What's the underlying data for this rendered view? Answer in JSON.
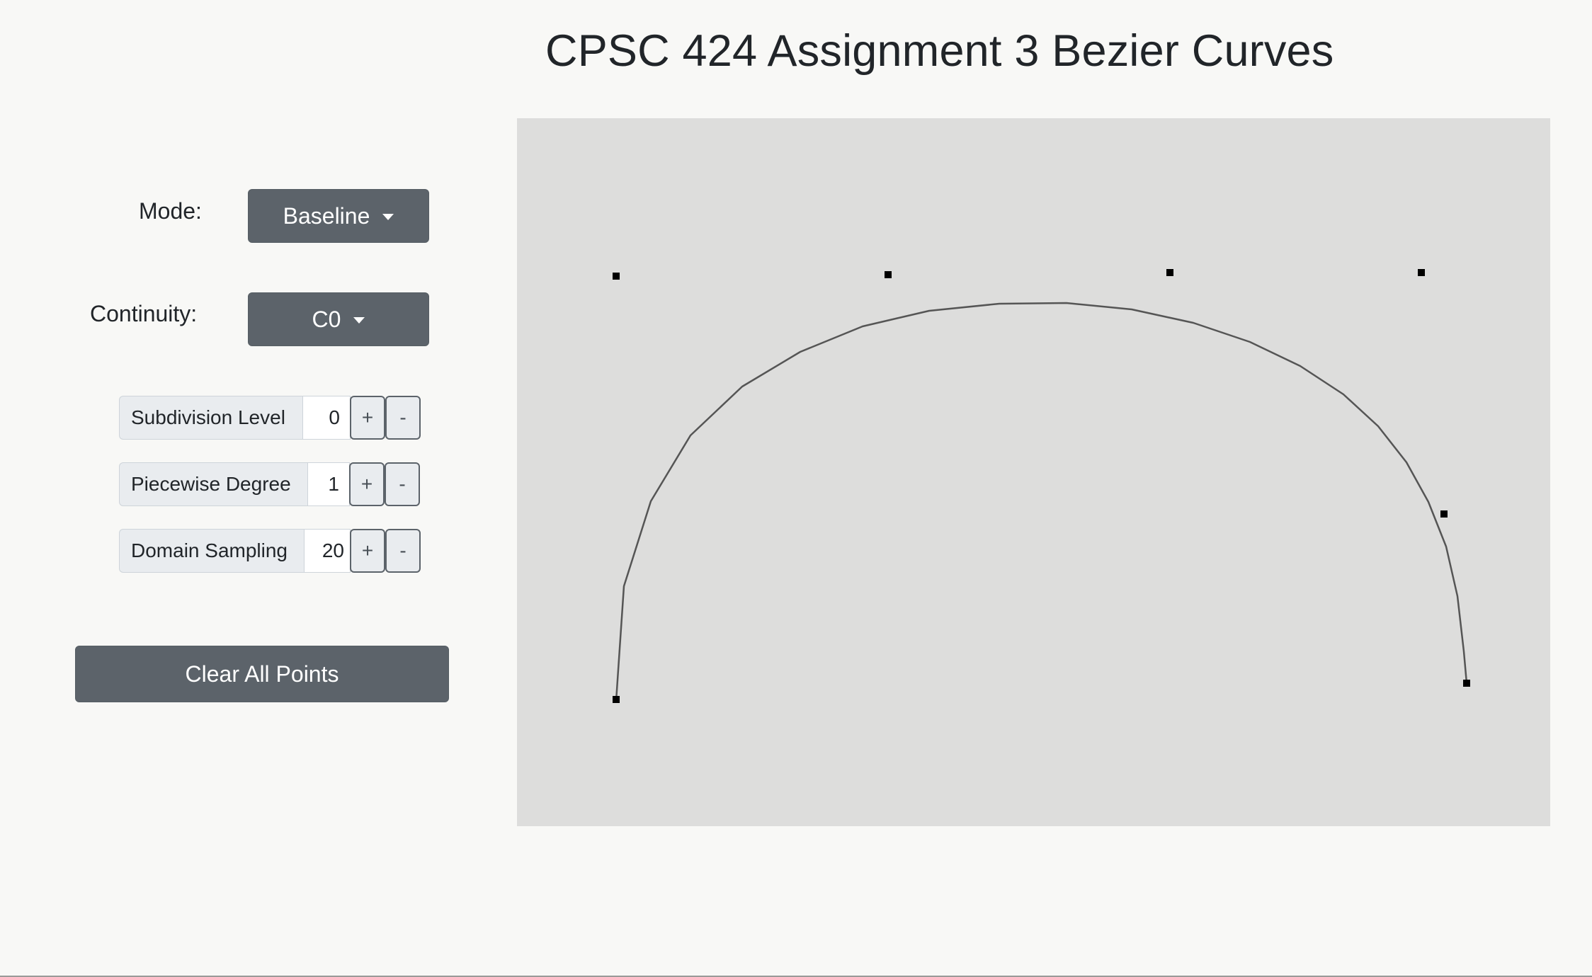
{
  "header": {
    "title": "CPSC 424 Assignment 3 Bezier Curves"
  },
  "controls": {
    "mode_label": "Mode:",
    "mode_value": "Baseline",
    "continuity_label": "Continuity:",
    "continuity_value": "C0",
    "subdivision": {
      "label": "Subdivision Level",
      "value": "0",
      "plus": "+",
      "minus": "-"
    },
    "degree": {
      "label": "Piecewise Degree",
      "value": "1",
      "plus": "+",
      "minus": "-"
    },
    "sampling": {
      "label": "Domain Sampling",
      "value": "20",
      "plus": "+",
      "minus": "-"
    },
    "clear_label": "Clear All Points"
  },
  "colors": {
    "button": "#5c636a",
    "canvas": "#dddddc",
    "curve": "#555555",
    "point": "#000000"
  }
}
